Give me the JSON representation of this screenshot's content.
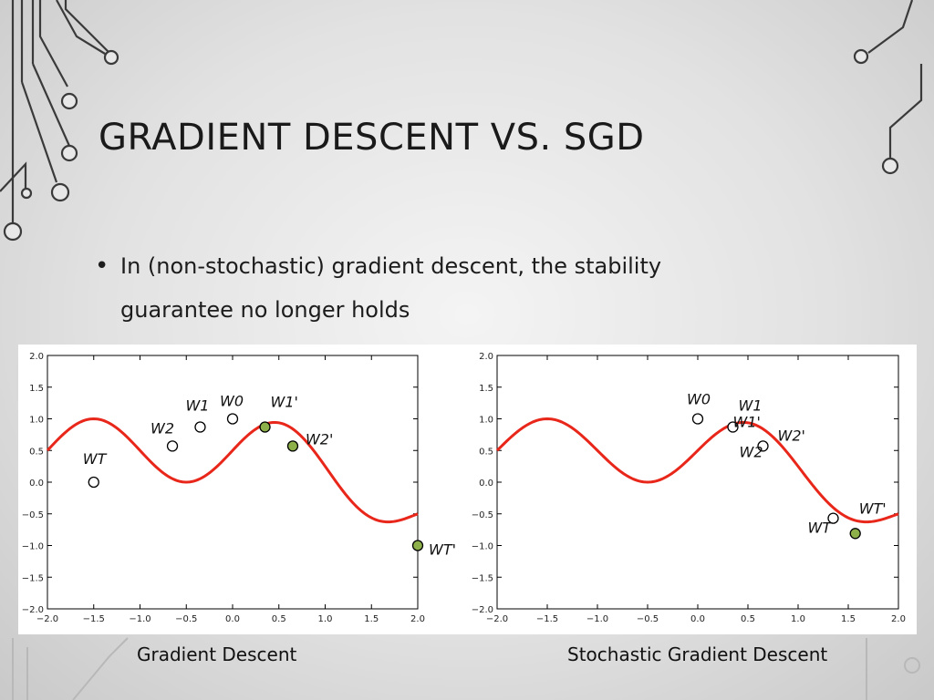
{
  "slide": {
    "title": "GRADIENT DESCENT VS. SGD",
    "bullet_char": "•",
    "bullet_text": "In (non-stochastic) gradient descent, the stability guarantee no longer holds"
  },
  "captions": {
    "left": "Gradient Descent",
    "right": "Stochastic Gradient Descent"
  },
  "colors": {
    "curve": "#e8261a",
    "point_open": "#ffffff",
    "point_green": "#8db04a"
  },
  "chart_data": [
    {
      "type": "line",
      "title": "",
      "xlim": [
        -2.0,
        2.0
      ],
      "ylim": [
        -2.0,
        2.0
      ],
      "xticks": [
        "−2.0",
        "−1.5",
        "−1.0",
        "−0.5",
        "0.0",
        "0.5",
        "1.0",
        "1.5",
        "2.0"
      ],
      "yticks": [
        "2.0",
        "1.5",
        "1.0",
        "0.5",
        "0.0",
        "−0.5",
        "−1.0",
        "−1.5",
        "−2.0"
      ],
      "curve": "sin(pi*(x+0.5)/2)^2 - max(0, x)^2/4",
      "points": [
        {
          "label": "WT",
          "x": -1.5,
          "y": 0.0,
          "style": "open"
        },
        {
          "label": "W2",
          "x": -0.65,
          "y": 0.57,
          "style": "open"
        },
        {
          "label": "W1",
          "x": -0.35,
          "y": 0.87,
          "style": "open"
        },
        {
          "label": "W0",
          "x": 0.0,
          "y": 1.0,
          "style": "open"
        },
        {
          "label": "W1'",
          "x": 0.35,
          "y": 0.87,
          "style": "green"
        },
        {
          "label": "W2'",
          "x": 0.65,
          "y": 0.57,
          "style": "green"
        },
        {
          "label": "WT'",
          "x": 2.0,
          "y": -1.0,
          "style": "green"
        }
      ]
    },
    {
      "type": "line",
      "title": "",
      "xlim": [
        -2.0,
        2.0
      ],
      "ylim": [
        -2.0,
        2.0
      ],
      "xticks": [
        "−2.0",
        "−1.5",
        "−1.0",
        "−0.5",
        "0.0",
        "0.5",
        "1.0",
        "1.5",
        "2.0"
      ],
      "yticks": [
        "2.0",
        "1.5",
        "1.0",
        "0.5",
        "0.0",
        "−0.5",
        "−1.0",
        "−1.5",
        "−2.0"
      ],
      "curve": "sin(pi*(x+0.5)/2)^2 - max(0, x)^2/4",
      "points": [
        {
          "label": "W0",
          "x": 0.0,
          "y": 1.0,
          "style": "open"
        },
        {
          "label": "W1",
          "x": 0.35,
          "y": 0.87,
          "style": "open"
        },
        {
          "label": "W1'",
          "x": 0.35,
          "y": 0.87,
          "style": "none"
        },
        {
          "label": "W2",
          "x": 0.65,
          "y": 0.57,
          "style": "open"
        },
        {
          "label": "W2'",
          "x": 0.65,
          "y": 0.57,
          "style": "none"
        },
        {
          "label": "WT",
          "x": 1.35,
          "y": -0.57,
          "style": "open"
        },
        {
          "label": "WT'",
          "x": 1.57,
          "y": -0.81,
          "style": "green"
        }
      ]
    }
  ]
}
